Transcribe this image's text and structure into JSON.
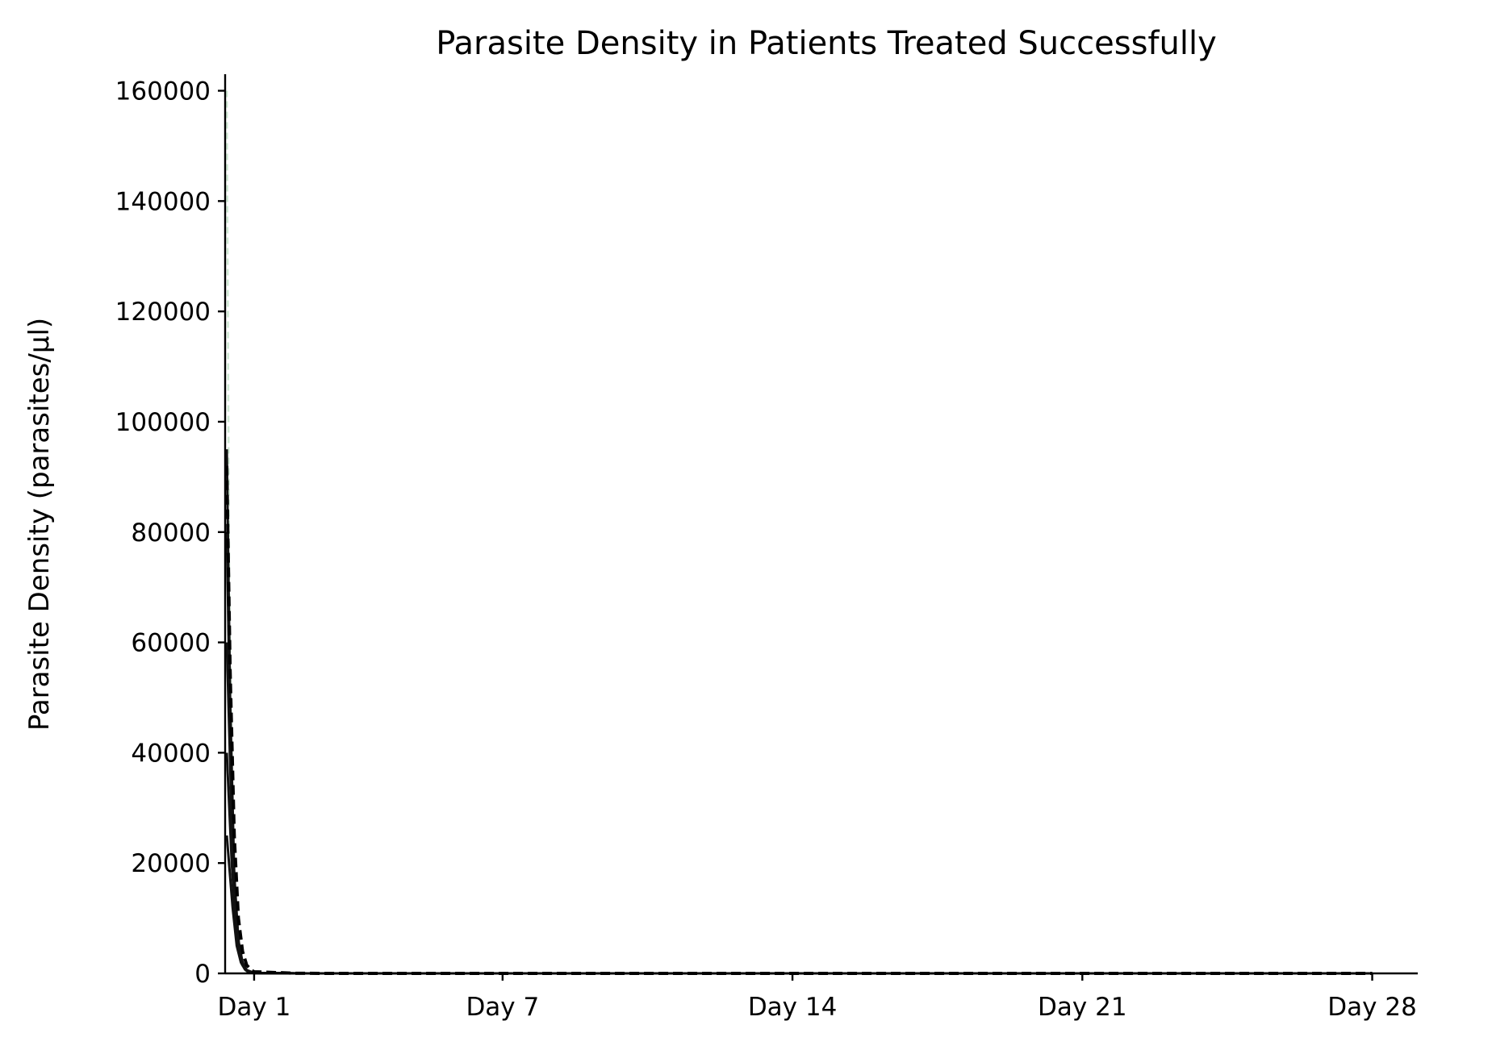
{
  "chart_data": {
    "type": "line",
    "title": "Parasite Density in Patients Treated Successfully",
    "xlabel": "",
    "ylabel": "Parasite Density (parasites/µl)",
    "xlim": [
      -0.7,
      28.1
    ],
    "ylim": [
      0,
      163000
    ],
    "x_ticks": [
      {
        "value": 0,
        "label": "Day 1"
      },
      {
        "value": 6,
        "label": "Day 7"
      },
      {
        "value": 13,
        "label": "Day 14"
      },
      {
        "value": 20,
        "label": "Day 21"
      },
      {
        "value": 27,
        "label": "Day 28"
      }
    ],
    "y_ticks": [
      0,
      20000,
      40000,
      60000,
      80000,
      100000,
      120000,
      140000,
      160000
    ],
    "grid": false,
    "legend": "none",
    "series": [
      {
        "x": [
          -0.66,
          -0.6,
          -0.5,
          -0.4,
          -0.3,
          -0.2,
          0,
          1,
          2,
          7,
          14,
          21,
          27
        ],
        "values": [
          160000,
          70000,
          20000,
          6000,
          1500,
          400,
          80,
          10,
          0,
          0,
          0,
          0,
          0
        ],
        "color": "#cfe9d4",
        "style": "dashed"
      },
      {
        "x": [
          -0.66,
          -0.58,
          -0.48,
          -0.38,
          -0.28,
          -0.18,
          0,
          1,
          2,
          7,
          14,
          21,
          27
        ],
        "values": [
          95000,
          50000,
          18000,
          6000,
          2000,
          600,
          100,
          10,
          0,
          0,
          0,
          0,
          0
        ],
        "color": "#111111",
        "style": "solid"
      },
      {
        "x": [
          -0.66,
          -0.57,
          -0.47,
          -0.37,
          -0.27,
          -0.17,
          0,
          1,
          2,
          7,
          14,
          21,
          27
        ],
        "values": [
          80000,
          40000,
          15000,
          5000,
          1500,
          400,
          80,
          10,
          0,
          0,
          0,
          0,
          0
        ],
        "color": "#111111",
        "style": "solid"
      },
      {
        "x": [
          -0.66,
          -0.55,
          -0.45,
          -0.35,
          -0.25,
          -0.15,
          0,
          1,
          2,
          7,
          14,
          21,
          27
        ],
        "values": [
          60000,
          30000,
          12000,
          4000,
          1200,
          300,
          60,
          5,
          0,
          0,
          0,
          0,
          0
        ],
        "color": "#111111",
        "style": "solid"
      },
      {
        "x": [
          -0.66,
          -0.54,
          -0.44,
          -0.34,
          -0.24,
          -0.14,
          0,
          1,
          2,
          7,
          14,
          21,
          27
        ],
        "values": [
          40000,
          20000,
          8000,
          3000,
          1000,
          250,
          50,
          5,
          0,
          0,
          0,
          0,
          0
        ],
        "color": "#111111",
        "style": "solid"
      },
      {
        "x": [
          -0.66,
          -0.52,
          -0.42,
          -0.32,
          -0.22,
          -0.12,
          0,
          1,
          2,
          7,
          14,
          21,
          27
        ],
        "values": [
          25000,
          12000,
          5000,
          2000,
          700,
          200,
          40,
          5,
          0,
          0,
          0,
          0,
          0
        ],
        "color": "#111111",
        "style": "solid"
      },
      {
        "x": [
          -0.66,
          -0.58,
          -0.48,
          -0.38,
          -0.28,
          -0.18,
          -0.05,
          0,
          1,
          2,
          7,
          14,
          21,
          27
        ],
        "values": [
          92000,
          55000,
          25000,
          10000,
          4000,
          1500,
          500,
          300,
          20,
          0,
          0,
          0,
          0,
          0
        ],
        "color": "#000000",
        "style": "dashed"
      }
    ]
  }
}
